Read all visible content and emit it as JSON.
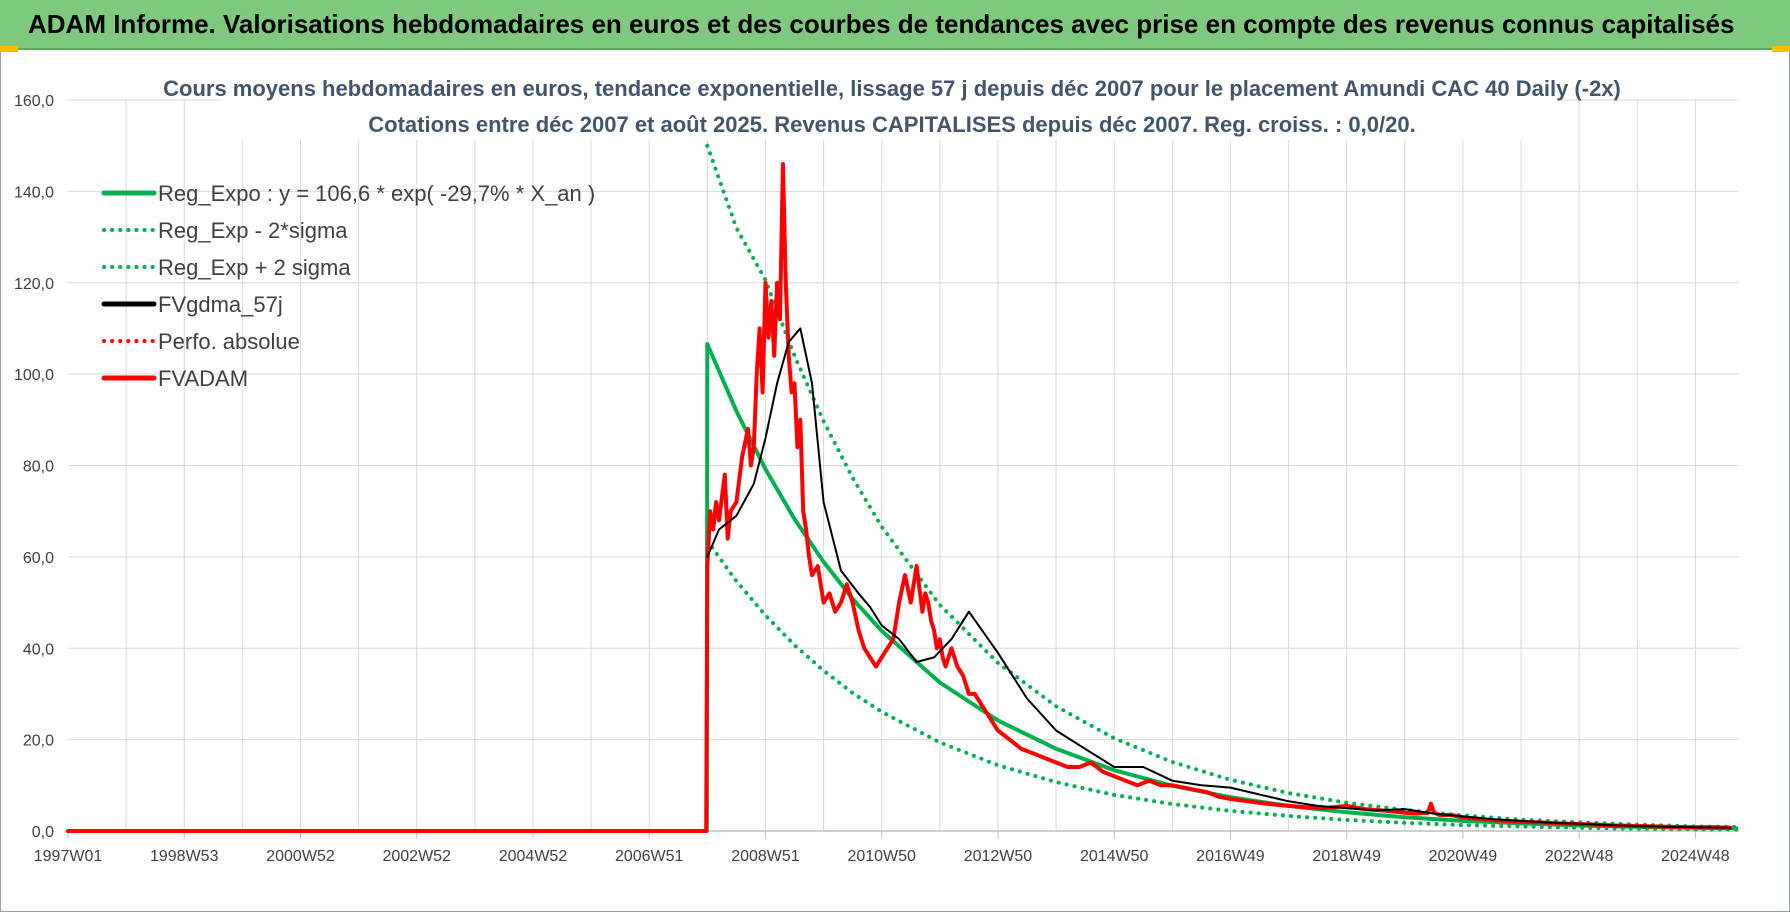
{
  "banner": {
    "title": "ADAM Informe. Valorisations hebdomadaires en euros et des courbes de tendances avec prise en compte des revenus connus capitalisés"
  },
  "colors": {
    "banner_bg": "#7fc97f",
    "green": "#00b050",
    "red": "#ff0000",
    "black": "#000000",
    "grid": "#d9d9d9",
    "corner_accent": "#f2c200"
  },
  "chart_data": {
    "type": "line",
    "title": "Cours moyens hebdomadaires en euros, tendance exponentielle, lissage 57 j depuis déc 2007 pour le placement Amundi CAC 40 Daily (-2x)",
    "subtitle": "Cotations entre déc 2007 et août 2025. Revenus CAPITALISES depuis déc 2007. Reg. croiss. : 0,0/20.",
    "xlabel": "",
    "ylabel": "",
    "x_range": [
      1997.0,
      2025.75
    ],
    "ylim": [
      0,
      160
    ],
    "y_ticks": [
      "0,0",
      "20,0",
      "40,0",
      "60,0",
      "80,0",
      "100,0",
      "120,0",
      "140,0",
      "160,0"
    ],
    "x_ticks": [
      {
        "label": "1997W01",
        "x": 1997.0
      },
      {
        "label": "1998W53",
        "x": 1999.0
      },
      {
        "label": "2000W52",
        "x": 2001.0
      },
      {
        "label": "2002W52",
        "x": 2003.0
      },
      {
        "label": "2004W52",
        "x": 2005.0
      },
      {
        "label": "2006W51",
        "x": 2007.0
      },
      {
        "label": "2008W51",
        "x": 2009.0
      },
      {
        "label": "2010W50",
        "x": 2011.0
      },
      {
        "label": "2012W50",
        "x": 2013.0
      },
      {
        "label": "2014W50",
        "x": 2015.0
      },
      {
        "label": "2016W49",
        "x": 2017.0
      },
      {
        "label": "2018W49",
        "x": 2019.0
      },
      {
        "label": "2020W49",
        "x": 2021.0
      },
      {
        "label": "2022W48",
        "x": 2023.0
      },
      {
        "label": "2024W48",
        "x": 2025.0
      }
    ],
    "grid": true,
    "legend_position": "top-left",
    "series": [
      {
        "name": "Reg_Expo : y = 106,6 * exp( -29,7% *  X_an )",
        "style": "solid",
        "color": "#00b050",
        "x": [
          1997.0,
          2007.99,
          2008.0,
          2008.5,
          2009.0,
          2009.5,
          2010.0,
          2010.5,
          2011.0,
          2012.0,
          2013.0,
          2014.0,
          2015.0,
          2016.0,
          2017.0,
          2018.0,
          2019.0,
          2020.0,
          2021.0,
          2022.0,
          2023.0,
          2024.0,
          2025.0,
          2025.7
        ],
        "y": [
          0,
          0,
          106.6,
          91.9,
          79.2,
          68.3,
          58.9,
          50.8,
          43.8,
          32.5,
          24.2,
          18.0,
          13.3,
          9.9,
          7.4,
          5.5,
          4.1,
          3.0,
          2.2,
          1.7,
          1.2,
          0.9,
          0.7,
          0.6
        ]
      },
      {
        "name": "Reg_Exp - 2*sigma",
        "style": "dotted",
        "color": "#00b050",
        "x": [
          2008.0,
          2008.5,
          2009.0,
          2009.5,
          2010.0,
          2010.5,
          2011.0,
          2012.0,
          2013.0,
          2014.0,
          2015.0,
          2016.0,
          2017.0,
          2018.0,
          2019.0,
          2020.0,
          2021.0,
          2022.0,
          2023.0,
          2024.0,
          2025.0,
          2025.7
        ],
        "y": [
          63.5,
          54.7,
          47.2,
          40.7,
          35.1,
          30.2,
          26.1,
          19.4,
          14.4,
          10.7,
          7.9,
          5.9,
          4.4,
          3.3,
          2.4,
          1.8,
          1.3,
          1.0,
          0.7,
          0.5,
          0.4,
          0.3
        ]
      },
      {
        "name": "Reg_Exp + 2 sigma",
        "style": "dotted",
        "color": "#00b050",
        "x": [
          2008.0,
          2008.5,
          2009.0,
          2009.5,
          2010.0,
          2010.5,
          2011.0,
          2012.0,
          2013.0,
          2014.0,
          2015.0,
          2016.0,
          2017.0,
          2018.0,
          2019.0,
          2020.0,
          2021.0,
          2022.0,
          2023.0,
          2024.0,
          2025.0,
          2025.7
        ],
        "y": [
          150,
          132,
          120.6,
          104.0,
          89.7,
          77.3,
          66.6,
          49.5,
          36.8,
          27.3,
          20.3,
          15.1,
          11.2,
          8.3,
          6.2,
          4.6,
          3.4,
          2.5,
          1.9,
          1.4,
          1.0,
          0.9
        ]
      },
      {
        "name": "FVgdma_57j",
        "style": "solid",
        "color": "#000000",
        "x": [
          2008.0,
          2008.2,
          2008.5,
          2008.8,
          2009.0,
          2009.2,
          2009.4,
          2009.6,
          2009.8,
          2010.0,
          2010.3,
          2010.6,
          2010.8,
          2011.0,
          2011.3,
          2011.6,
          2011.9,
          2012.2,
          2012.5,
          2013.0,
          2013.5,
          2014.0,
          2014.5,
          2015.0,
          2015.5,
          2016.0,
          2016.5,
          2017.0,
          2017.5,
          2018.0,
          2018.5,
          2019.0,
          2019.5,
          2020.0,
          2020.5,
          2021.0,
          2021.5,
          2022.0,
          2022.5,
          2023.0,
          2023.5,
          2024.0,
          2024.5,
          2025.0,
          2025.6
        ],
        "y": [
          60,
          66,
          69,
          76,
          86,
          98,
          107,
          110,
          98,
          72,
          57,
          52,
          49,
          45,
          42,
          37,
          38,
          42,
          48,
          39,
          29,
          22,
          18,
          14,
          14,
          11,
          10,
          9.5,
          8,
          6.5,
          5.5,
          5,
          4.5,
          4.8,
          3.8,
          3.2,
          2.6,
          2.2,
          1.8,
          1.6,
          1.3,
          1.1,
          0.9,
          0.8,
          0.7
        ]
      },
      {
        "name": "Perfo. absolue",
        "style": "dotted",
        "color": "#ff0000",
        "x": [],
        "y": []
      },
      {
        "name": "FVADAM",
        "style": "solid",
        "color": "#ff0000",
        "x": [
          1997.0,
          2007.98,
          2008.0,
          2008.05,
          2008.1,
          2008.15,
          2008.2,
          2008.3,
          2008.35,
          2008.4,
          2008.5,
          2008.6,
          2008.7,
          2008.75,
          2008.8,
          2008.85,
          2008.9,
          2008.95,
          2009.0,
          2009.05,
          2009.1,
          2009.15,
          2009.2,
          2009.25,
          2009.3,
          2009.35,
          2009.4,
          2009.45,
          2009.5,
          2009.55,
          2009.6,
          2009.65,
          2009.7,
          2009.75,
          2009.8,
          2009.9,
          2010.0,
          2010.1,
          2010.2,
          2010.3,
          2010.4,
          2010.5,
          2010.6,
          2010.65,
          2010.7,
          2010.8,
          2010.9,
          2011.0,
          2011.1,
          2011.2,
          2011.3,
          2011.4,
          2011.5,
          2011.6,
          2011.7,
          2011.75,
          2011.8,
          2011.85,
          2011.9,
          2011.95,
          2012.0,
          2012.05,
          2012.1,
          2012.15,
          2012.2,
          2012.3,
          2012.4,
          2012.5,
          2012.6,
          2012.7,
          2012.8,
          2012.9,
          2013.0,
          2013.2,
          2013.4,
          2013.6,
          2013.8,
          2014.0,
          2014.2,
          2014.4,
          2014.6,
          2014.8,
          2015.0,
          2015.2,
          2015.4,
          2015.6,
          2015.8,
          2016.0,
          2016.2,
          2016.4,
          2016.6,
          2016.8,
          2017.0,
          2017.3,
          2017.6,
          2018.0,
          2018.3,
          2018.6,
          2019.0,
          2019.3,
          2019.6,
          2020.0,
          2020.2,
          2020.4,
          2020.45,
          2020.5,
          2020.6,
          2020.8,
          2021.0,
          2021.3,
          2021.6,
          2022.0,
          2022.3,
          2022.6,
          2023.0,
          2023.3,
          2023.6,
          2024.0,
          2024.3,
          2024.6,
          2025.0,
          2025.3,
          2025.6
        ],
        "y": [
          0,
          0,
          58,
          70,
          66,
          72,
          68,
          78,
          64,
          70,
          72,
          82,
          88,
          80,
          84,
          100,
          110,
          96,
          120,
          108,
          116,
          104,
          120,
          112,
          146,
          120,
          104,
          96,
          98,
          84,
          90,
          70,
          66,
          60,
          56,
          58,
          50,
          52,
          48,
          50,
          54,
          50,
          44,
          42,
          40,
          38,
          36,
          38,
          40,
          42,
          50,
          56,
          50,
          58,
          48,
          52,
          50,
          46,
          44,
          40,
          42,
          38,
          36,
          38,
          40,
          36,
          34,
          30,
          30,
          28,
          26,
          24,
          22,
          20,
          18,
          17,
          16,
          15,
          14,
          14,
          15,
          13,
          12,
          11,
          10,
          11,
          10,
          10,
          9.5,
          9,
          8.5,
          7.5,
          7,
          6.5,
          6,
          5.5,
          5.2,
          5,
          5.5,
          4.8,
          4.5,
          4,
          3.8,
          4,
          6,
          4,
          3.5,
          3.5,
          3,
          2.6,
          2.3,
          2.0,
          1.9,
          1.7,
          1.5,
          1.4,
          1.2,
          1.1,
          1.0,
          0.9,
          0.8,
          0.8,
          0.7
        ]
      }
    ]
  }
}
